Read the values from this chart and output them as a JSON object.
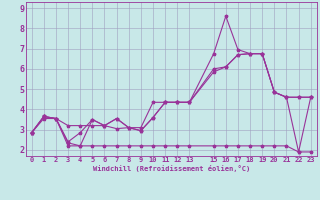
{
  "xlabel": "Windchill (Refroidissement éolien,°C)",
  "background_color": "#c8e8e8",
  "grid_color": "#a0a0c0",
  "line_color": "#993399",
  "xlim": [
    -0.5,
    23.5
  ],
  "ylim": [
    1.7,
    9.3
  ],
  "x_ticks": [
    0,
    1,
    2,
    3,
    4,
    5,
    6,
    7,
    8,
    9,
    10,
    11,
    12,
    13,
    15,
    16,
    17,
    18,
    19,
    20,
    21,
    22,
    23
  ],
  "yticks": [
    2,
    3,
    4,
    5,
    6,
    7,
    8,
    9
  ],
  "series1_x": [
    0,
    1,
    2,
    3,
    4,
    5,
    6,
    7,
    8,
    9,
    10,
    11,
    12,
    13,
    15,
    16,
    17,
    18,
    19,
    20,
    21,
    22,
    23
  ],
  "series1_y": [
    2.85,
    3.65,
    3.55,
    2.4,
    2.85,
    3.5,
    3.2,
    3.05,
    3.1,
    2.95,
    3.6,
    4.35,
    4.35,
    4.35,
    6.75,
    8.6,
    6.95,
    6.75,
    6.75,
    4.85,
    4.6,
    1.9,
    4.6
  ],
  "series2_x": [
    0,
    1,
    2,
    3,
    4,
    5,
    6,
    7,
    8,
    9,
    10,
    11,
    12,
    13,
    15,
    16,
    17,
    18,
    19,
    20,
    21,
    22,
    23
  ],
  "series2_y": [
    2.85,
    3.65,
    3.55,
    2.35,
    2.2,
    3.5,
    3.2,
    3.55,
    3.1,
    2.95,
    3.6,
    4.35,
    4.35,
    4.35,
    6.0,
    6.1,
    6.7,
    6.75,
    6.75,
    4.85,
    4.6,
    4.6,
    4.6
  ],
  "series3_x": [
    0,
    1,
    2,
    3,
    4,
    5,
    6,
    7,
    8,
    9,
    10,
    11,
    12,
    13,
    15,
    16,
    17,
    18,
    19,
    20,
    21,
    22,
    23
  ],
  "series3_y": [
    2.85,
    3.65,
    3.55,
    2.2,
    2.2,
    2.2,
    2.2,
    2.2,
    2.2,
    2.2,
    2.2,
    2.2,
    2.2,
    2.2,
    2.2,
    2.2,
    2.2,
    2.2,
    2.2,
    2.2,
    2.2,
    1.9,
    1.9
  ],
  "series4_x": [
    0,
    1,
    2,
    3,
    4,
    5,
    6,
    7,
    8,
    9,
    10,
    11,
    12,
    13,
    15,
    16,
    17,
    18,
    19,
    20,
    21,
    22,
    23
  ],
  "series4_y": [
    2.85,
    3.55,
    3.55,
    3.2,
    3.2,
    3.2,
    3.2,
    3.55,
    3.1,
    3.1,
    4.35,
    4.35,
    4.35,
    4.35,
    5.85,
    6.1,
    6.7,
    6.75,
    6.75,
    4.85,
    4.6,
    4.6,
    4.6
  ],
  "tick_fontsize": 5,
  "label_fontsize": 5,
  "linewidth": 0.8,
  "markersize": 2.5
}
